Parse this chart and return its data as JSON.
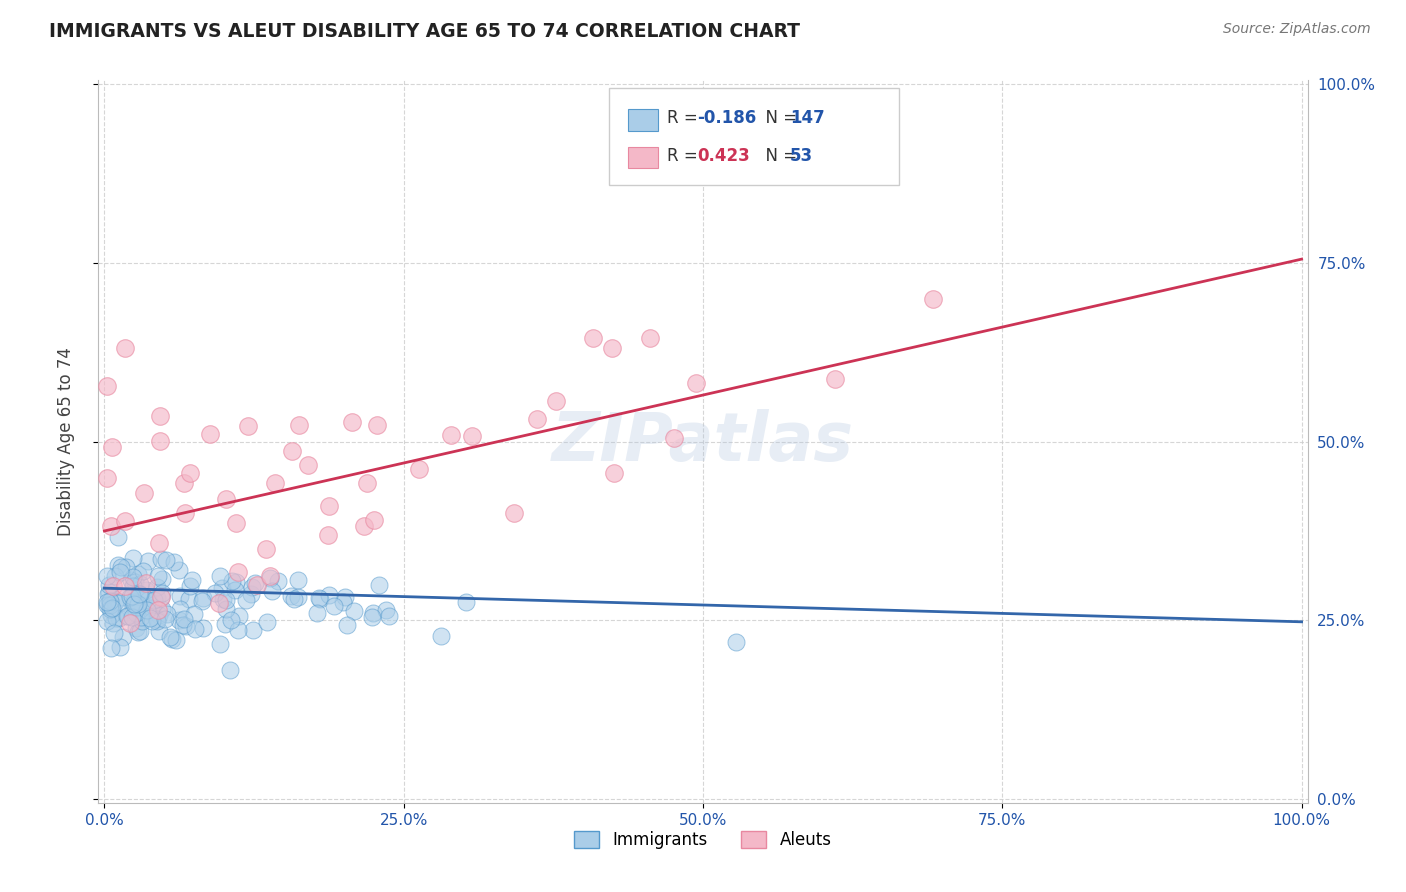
{
  "title": "IMMIGRANTS VS ALEUT DISABILITY AGE 65 TO 74 CORRELATION CHART",
  "source": "Source: ZipAtlas.com",
  "ylabel": "Disability Age 65 to 74",
  "xlim": [
    0.0,
    1.0
  ],
  "ylim": [
    0.0,
    1.0
  ],
  "ytick_labels": [
    "0.0%",
    "25.0%",
    "50.0%",
    "75.0%",
    "100.0%"
  ],
  "ytick_values": [
    0.0,
    0.25,
    0.5,
    0.75,
    1.0
  ],
  "xtick_labels": [
    "0.0%",
    "25.0%",
    "50.0%",
    "75.0%",
    "100.0%"
  ],
  "xtick_values": [
    0.0,
    0.25,
    0.5,
    0.75,
    1.0
  ],
  "legend_label1": "Immigrants",
  "legend_label2": "Aleuts",
  "R1": -0.186,
  "N1": 147,
  "R2": 0.423,
  "N2": 53,
  "blue_color": "#aacde8",
  "pink_color": "#f4b8c8",
  "blue_edge_color": "#5599cc",
  "pink_edge_color": "#e888a0",
  "blue_line_color": "#3366aa",
  "pink_line_color": "#cc3355",
  "title_color": "#222222",
  "stat_color_blue": "#2255aa",
  "stat_color_pink": "#cc3355",
  "watermark": "ZIPatlas",
  "background_color": "#ffffff",
  "grid_color": "#cccccc",
  "blue_line_start_y": 0.295,
  "blue_line_end_y": 0.248,
  "pink_line_start_y": 0.375,
  "pink_line_end_y": 0.755
}
